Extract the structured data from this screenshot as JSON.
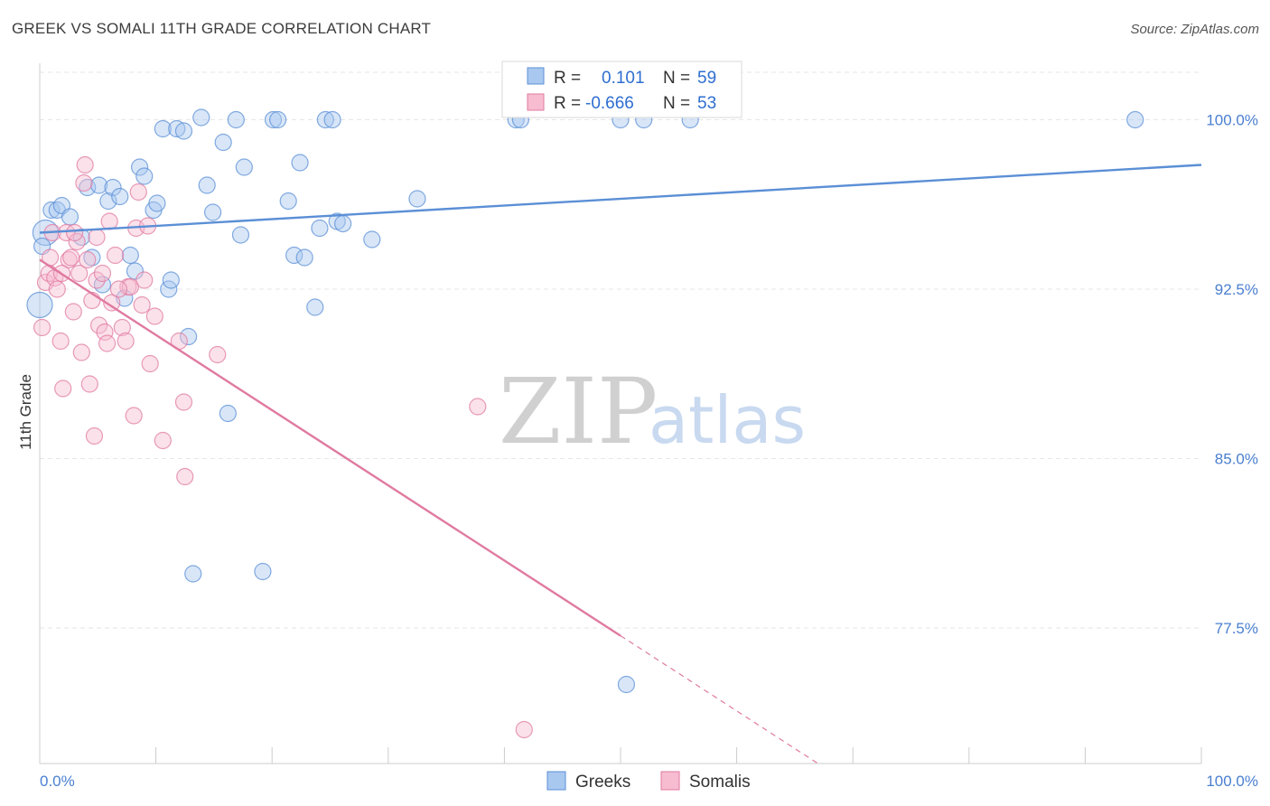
{
  "header": {
    "title": "GREEK VS SOMALI 11TH GRADE CORRELATION CHART",
    "source": "Source: ZipAtlas.com"
  },
  "watermark": {
    "zip": "ZIP",
    "atlas": "atlas"
  },
  "legend_top": {
    "rows": [
      {
        "r_label": "R =",
        "r_value": "0.101",
        "n_label": "N =",
        "n_value": "59",
        "color": "#a9c8f0",
        "border": "#5b8fd6"
      },
      {
        "r_label": "R =",
        "r_value": "-0.666",
        "n_label": "N =",
        "n_value": "53",
        "color": "#f7bcd0",
        "border": "#e07aa0"
      }
    ]
  },
  "legend_bottom": [
    {
      "label": "Greeks",
      "color": "#a9c8f0",
      "border": "#5b8fd6"
    },
    {
      "label": "Somalis",
      "color": "#f7bcd0",
      "border": "#e07aa0"
    }
  ],
  "chart_data": {
    "type": "scatter",
    "title": "GREEK VS SOMALI 11TH GRADE CORRELATION CHART",
    "xlabel": "",
    "ylabel": "11th Grade",
    "xlim": [
      0,
      100
    ],
    "ylim": [
      71.5,
      102.5
    ],
    "x_tick_labels": [
      "0.0%",
      "100.0%"
    ],
    "y_ticks": [
      77.5,
      85.0,
      92.5,
      100.0
    ],
    "y_tick_labels": [
      "77.5%",
      "85.0%",
      "92.5%",
      "100.0%"
    ],
    "grid": true,
    "series": [
      {
        "name": "Greeks",
        "color": "#5b8fd6",
        "fill": "#a9c8f0",
        "trend": {
          "x0": 0,
          "y0": 95.0,
          "x1": 100,
          "y1": 98.0,
          "dash_from": 100
        },
        "points": [
          [
            0.5,
            95.0,
            22
          ],
          [
            1.0,
            96.0,
            10
          ],
          [
            1.5,
            96.0,
            10
          ],
          [
            1.9,
            96.2,
            10
          ],
          [
            2.6,
            95.7,
            10
          ],
          [
            3.6,
            94.8,
            10
          ],
          [
            4.1,
            97.0,
            10
          ],
          [
            4.5,
            93.9,
            10
          ],
          [
            5.1,
            97.1,
            10
          ],
          [
            5.4,
            92.7,
            10
          ],
          [
            5.9,
            96.4,
            10
          ],
          [
            6.3,
            97.0,
            10
          ],
          [
            6.9,
            96.6,
            10
          ],
          [
            7.3,
            92.1,
            10
          ],
          [
            7.8,
            94.0,
            10
          ],
          [
            8.2,
            93.3,
            10
          ],
          [
            8.6,
            97.9,
            10
          ],
          [
            9.0,
            97.5,
            10
          ],
          [
            9.8,
            96.0,
            10
          ],
          [
            10.1,
            96.3,
            10
          ],
          [
            10.6,
            99.6,
            10
          ],
          [
            11.1,
            92.5,
            10
          ],
          [
            11.3,
            92.9,
            10
          ],
          [
            11.8,
            99.6,
            10
          ],
          [
            12.4,
            99.5,
            10
          ],
          [
            12.8,
            90.4,
            10
          ],
          [
            13.2,
            79.9,
            10
          ],
          [
            13.9,
            100.1,
            10
          ],
          [
            14.4,
            97.1,
            10
          ],
          [
            14.9,
            95.9,
            10
          ],
          [
            15.8,
            99.0,
            10
          ],
          [
            16.2,
            87.0,
            10
          ],
          [
            16.9,
            100.0,
            10
          ],
          [
            17.3,
            94.9,
            10
          ],
          [
            17.6,
            97.9,
            10
          ],
          [
            19.2,
            80.0,
            10
          ],
          [
            20.1,
            100.0,
            10
          ],
          [
            20.5,
            100.0,
            10
          ],
          [
            21.4,
            96.4,
            10
          ],
          [
            21.9,
            94.0,
            10
          ],
          [
            22.8,
            93.9,
            10
          ],
          [
            22.4,
            98.1,
            10
          ],
          [
            23.7,
            91.7,
            10
          ],
          [
            24.1,
            95.2,
            10
          ],
          [
            24.6,
            100.0,
            10
          ],
          [
            25.2,
            100.0,
            10
          ],
          [
            25.6,
            95.5,
            10
          ],
          [
            26.1,
            95.4,
            10
          ],
          [
            28.6,
            94.7,
            10
          ],
          [
            32.5,
            96.5,
            10
          ],
          [
            41.0,
            100.0,
            10
          ],
          [
            41.4,
            100.0,
            10
          ],
          [
            50.0,
            100.0,
            10
          ],
          [
            50.5,
            75.0,
            10
          ],
          [
            52.0,
            100.0,
            10
          ],
          [
            56.0,
            100.0,
            10
          ],
          [
            94.3,
            100.0,
            10
          ],
          [
            0.0,
            91.8,
            22
          ],
          [
            0.2,
            94.4,
            10
          ]
        ]
      },
      {
        "name": "Somalis",
        "color": "#e07aa0",
        "fill": "#f7bcd0",
        "trend": {
          "x0": 0,
          "y0": 93.8,
          "x1": 70,
          "y1": 70.5,
          "dash_from": 50
        },
        "points": [
          [
            0.2,
            90.8,
            10
          ],
          [
            0.5,
            92.8,
            10
          ],
          [
            0.8,
            93.2,
            10
          ],
          [
            1.1,
            95.0,
            10
          ],
          [
            1.3,
            93.0,
            10
          ],
          [
            1.5,
            92.5,
            10
          ],
          [
            1.8,
            90.2,
            10
          ],
          [
            2.0,
            88.1,
            10
          ],
          [
            2.3,
            95.0,
            10
          ],
          [
            2.5,
            93.8,
            10
          ],
          [
            2.7,
            93.9,
            10
          ],
          [
            2.9,
            91.5,
            10
          ],
          [
            3.2,
            94.6,
            10
          ],
          [
            3.4,
            93.2,
            10
          ],
          [
            3.6,
            89.7,
            10
          ],
          [
            3.9,
            98.0,
            10
          ],
          [
            4.1,
            93.8,
            10
          ],
          [
            4.3,
            88.3,
            10
          ],
          [
            4.5,
            92.0,
            10
          ],
          [
            4.7,
            86.0,
            10
          ],
          [
            4.9,
            92.9,
            10
          ],
          [
            5.1,
            90.9,
            10
          ],
          [
            5.4,
            93.2,
            10
          ],
          [
            5.6,
            90.6,
            10
          ],
          [
            5.8,
            90.1,
            10
          ],
          [
            6.0,
            95.5,
            10
          ],
          [
            6.2,
            91.9,
            10
          ],
          [
            6.5,
            94.0,
            10
          ],
          [
            7.1,
            90.8,
            10
          ],
          [
            7.4,
            90.2,
            10
          ],
          [
            7.6,
            92.6,
            10
          ],
          [
            7.8,
            92.6,
            10
          ],
          [
            8.1,
            86.9,
            10
          ],
          [
            8.3,
            95.2,
            10
          ],
          [
            8.5,
            96.8,
            10
          ],
          [
            8.8,
            91.8,
            10
          ],
          [
            9.0,
            92.9,
            10
          ],
          [
            9.3,
            95.3,
            10
          ],
          [
            9.5,
            89.2,
            10
          ],
          [
            9.9,
            91.3,
            10
          ],
          [
            10.6,
            85.8,
            10
          ],
          [
            12.0,
            90.2,
            10
          ],
          [
            12.4,
            87.5,
            10
          ],
          [
            12.5,
            84.2,
            10
          ],
          [
            15.3,
            89.6,
            10
          ],
          [
            37.7,
            87.3,
            10
          ],
          [
            41.7,
            73.0,
            10
          ],
          [
            3.8,
            97.2,
            10
          ],
          [
            4.9,
            94.8,
            10
          ],
          [
            1.9,
            93.2,
            10
          ],
          [
            6.8,
            92.5,
            10
          ],
          [
            3.0,
            95.0,
            10
          ],
          [
            0.9,
            93.9,
            10
          ]
        ]
      }
    ]
  }
}
